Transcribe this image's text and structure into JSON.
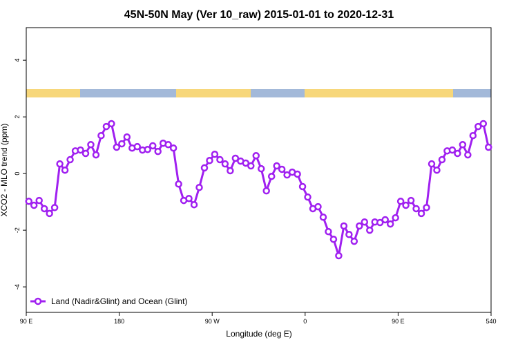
{
  "chart_data": {
    "type": "line",
    "title": "45N-50N May (Ver 10_raw)   2015-01-01 to 2020-12-31",
    "xlabel": "Longitude (deg E)",
    "ylabel": "XCO2 - MLO trend (ppm)",
    "x": [
      92.5,
      97.5,
      102.5,
      107.5,
      112.5,
      117.5,
      122.5,
      127.5,
      132.5,
      137.5,
      142.5,
      147.5,
      152.5,
      157.5,
      162.5,
      167.5,
      172.5,
      177.5,
      182.5,
      187.5,
      192.5,
      197.5,
      202.5,
      207.5,
      212.5,
      217.5,
      222.5,
      227.5,
      232.5,
      237.5,
      242.5,
      247.5,
      252.5,
      257.5,
      262.5,
      267.5,
      272.5,
      277.5,
      282.5,
      287.5,
      292.5,
      297.5,
      302.5,
      307.5,
      312.5,
      317.5,
      322.5,
      327.5,
      332.5,
      337.5,
      342.5,
      347.5,
      352.5,
      357.5,
      362.5,
      367.5,
      372.5,
      377.5,
      382.5,
      387.5,
      392.5,
      397.5,
      402.5,
      407.5,
      412.5,
      417.5,
      422.5,
      427.5,
      432.5,
      437.5,
      442.5,
      447.5,
      452.5,
      457.5,
      462.5,
      467.5,
      472.5,
      477.5,
      482.5,
      487.5,
      492.5,
      497.5,
      502.5,
      507.5,
      512.5,
      517.5,
      522.5,
      527.5,
      532.5,
      537.5
    ],
    "series": [
      {
        "name": "Land (Nadir&Glint) and Ocean (Glint)",
        "color": "#a020f0",
        "values": [
          -0.98,
          -1.12,
          -0.95,
          -1.24,
          -1.41,
          -1.2,
          0.34,
          0.12,
          0.49,
          0.8,
          0.83,
          0.71,
          1.02,
          0.66,
          1.34,
          1.66,
          1.76,
          0.93,
          1.05,
          1.29,
          0.9,
          0.95,
          0.83,
          0.85,
          0.98,
          0.78,
          1.07,
          1.02,
          0.9,
          -0.37,
          -0.95,
          -0.88,
          -1.1,
          -0.49,
          0.2,
          0.46,
          0.68,
          0.49,
          0.34,
          0.1,
          0.54,
          0.44,
          0.37,
          0.27,
          0.63,
          0.17,
          -0.61,
          -0.1,
          0.27,
          0.15,
          -0.05,
          0.05,
          -0.02,
          -0.46,
          -0.83,
          -1.24,
          -1.17,
          -1.54,
          -2.05,
          -2.32,
          -2.9,
          -1.85,
          -2.15,
          -2.39,
          -1.85,
          -1.71,
          -2.0,
          -1.71,
          -1.73,
          -1.63,
          -1.78,
          -1.56,
          -0.98,
          -1.12,
          -0.95,
          -1.24,
          -1.41,
          -1.2,
          0.34,
          0.12,
          0.49,
          0.8,
          0.83,
          0.71,
          1.02,
          0.66,
          1.34,
          1.66,
          1.76,
          0.93
        ]
      }
    ],
    "xlim": [
      90,
      540
    ],
    "xticks": [
      {
        "value": 90,
        "label": "90 E"
      },
      180,
      {
        "value": 270,
        "label": "90 W"
      },
      {
        "value": 360,
        "label": "0"
      },
      {
        "value": 450,
        "label": "90 E"
      },
      540
    ],
    "ylim": [
      -4.9,
      5.15
    ],
    "yticks": [
      -4,
      -2,
      0,
      2,
      4
    ],
    "legend": "bottom-left"
  }
}
